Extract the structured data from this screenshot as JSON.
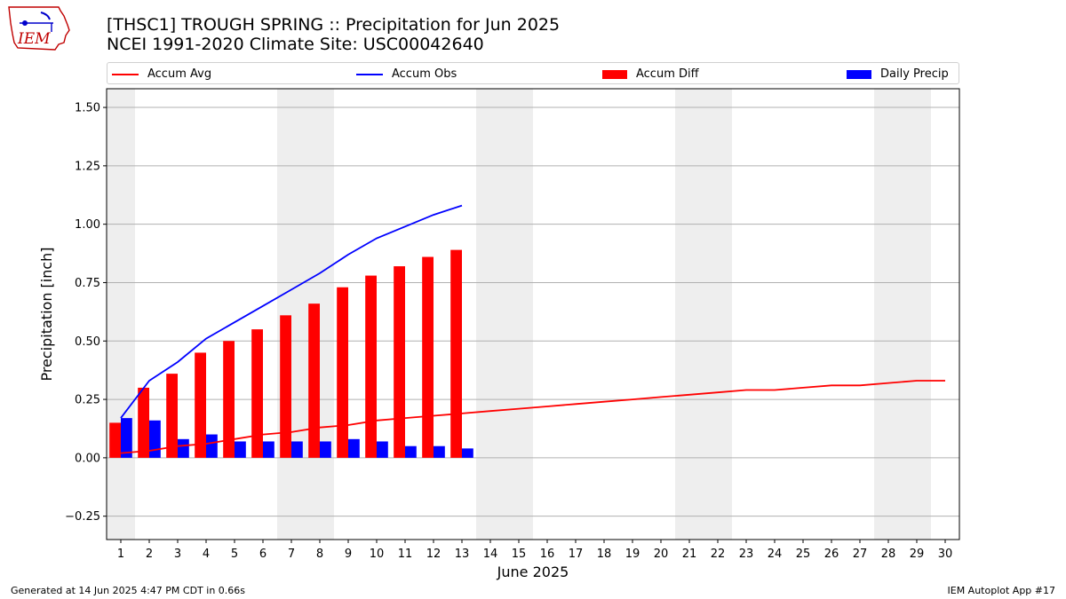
{
  "header": {
    "title_line1": "[THSC1] TROUGH SPRING :: Precipitation for Jun 2025",
    "title_line2": "NCEI 1991-2020 Climate Site: USC00042640"
  },
  "logo": {
    "text": "IEM",
    "icon": "iem-logo"
  },
  "legend": {
    "accum_avg": "Accum Avg",
    "accum_obs": "Accum Obs",
    "accum_diff": "Accum Diff",
    "daily_precip": "Daily Precip"
  },
  "footer": {
    "left": "Generated at 14 Jun 2025 4:47 PM CDT in 0.66s",
    "right": "IEM Autoplot App #17"
  },
  "colors": {
    "avg": "#ff0000",
    "obs": "#0000ff",
    "diff": "#ff0000",
    "daily": "#0000ff",
    "weekend": "#eeeeee",
    "grid": "#b0b0b0"
  },
  "chart_data": {
    "type": "bar",
    "xlabel": "June 2025",
    "ylabel": "Precipitation [inch]",
    "xlim": [
      0.5,
      30.5
    ],
    "ylim": [
      -0.35,
      1.58
    ],
    "yticks": [
      -0.25,
      0.0,
      0.25,
      0.5,
      0.75,
      1.0,
      1.25,
      1.5
    ],
    "ytick_labels": [
      "−0.25",
      "0.00",
      "0.25",
      "0.50",
      "0.75",
      "1.00",
      "1.25",
      "1.50"
    ],
    "days": [
      1,
      2,
      3,
      4,
      5,
      6,
      7,
      8,
      9,
      10,
      11,
      12,
      13,
      14,
      15,
      16,
      17,
      18,
      19,
      20,
      21,
      22,
      23,
      24,
      25,
      26,
      27,
      28,
      29,
      30
    ],
    "weekend_days": [
      1,
      7,
      8,
      14,
      15,
      21,
      22,
      28,
      29
    ],
    "grid": "y",
    "series": [
      {
        "name": "Accum Avg",
        "kind": "line",
        "x": [
          1,
          2,
          3,
          4,
          5,
          6,
          7,
          8,
          9,
          10,
          11,
          12,
          13,
          14,
          15,
          16,
          17,
          18,
          19,
          20,
          21,
          22,
          23,
          24,
          25,
          26,
          27,
          28,
          29,
          30
        ],
        "values": [
          0.02,
          0.03,
          0.05,
          0.06,
          0.08,
          0.1,
          0.11,
          0.13,
          0.14,
          0.16,
          0.17,
          0.18,
          0.19,
          0.2,
          0.21,
          0.22,
          0.23,
          0.24,
          0.25,
          0.26,
          0.27,
          0.28,
          0.29,
          0.29,
          0.3,
          0.31,
          0.31,
          0.32,
          0.33,
          0.33
        ]
      },
      {
        "name": "Accum Obs",
        "kind": "line",
        "x": [
          1,
          2,
          3,
          4,
          5,
          6,
          7,
          8,
          9,
          10,
          11,
          12,
          13
        ],
        "values": [
          0.17,
          0.33,
          0.41,
          0.51,
          0.58,
          0.65,
          0.72,
          0.79,
          0.87,
          0.94,
          0.99,
          1.04,
          1.08
        ]
      },
      {
        "name": "Accum Diff",
        "kind": "bar",
        "x": [
          1,
          2,
          3,
          4,
          5,
          6,
          7,
          8,
          9,
          10,
          11,
          12,
          13
        ],
        "values": [
          0.15,
          0.3,
          0.36,
          0.45,
          0.5,
          0.55,
          0.61,
          0.66,
          0.73,
          0.78,
          0.82,
          0.86,
          0.89
        ]
      },
      {
        "name": "Daily Precip",
        "kind": "bar",
        "x": [
          1,
          2,
          3,
          4,
          5,
          6,
          7,
          8,
          9,
          10,
          11,
          12,
          13
        ],
        "values": [
          0.17,
          0.16,
          0.08,
          0.1,
          0.07,
          0.07,
          0.07,
          0.07,
          0.08,
          0.07,
          0.05,
          0.05,
          0.04
        ]
      }
    ]
  }
}
